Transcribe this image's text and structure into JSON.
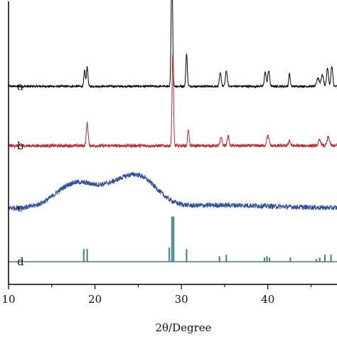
{
  "chart_data": {
    "type": "line",
    "xlabel": "2θ/Degree",
    "ylabel": "",
    "xlim": [
      10,
      48
    ],
    "ylim": [
      0,
      100
    ],
    "grid": false,
    "xticks": [
      10,
      20,
      30,
      40
    ],
    "x_tick_labels": [
      "10",
      "20",
      "30",
      "40"
    ],
    "series": [
      {
        "name": "a",
        "color": "#000000",
        "baseline": 70,
        "noise": 0.35,
        "hump": [],
        "peaks": [
          [
            18.8,
            5.5,
            0.12
          ],
          [
            19.1,
            7,
            0.12
          ],
          [
            28.9,
            43,
            0.12
          ],
          [
            30.6,
            11.5,
            0.12
          ],
          [
            34.5,
            4.5,
            0.15
          ],
          [
            35.2,
            5.5,
            0.15
          ],
          [
            39.7,
            5,
            0.15
          ],
          [
            40.1,
            5.5,
            0.15
          ],
          [
            42.5,
            4.5,
            0.12
          ],
          [
            45.8,
            3,
            0.2
          ],
          [
            46.3,
            4,
            0.2
          ],
          [
            46.9,
            6.5,
            0.15
          ],
          [
            47.4,
            7,
            0.15
          ]
        ]
      },
      {
        "name": "b",
        "color": "#c0262c",
        "baseline": 49,
        "noise": 0.55,
        "hump": [],
        "peaks": [
          [
            19.1,
            8,
            0.15
          ],
          [
            29.0,
            32,
            0.12
          ],
          [
            30.8,
            6,
            0.12
          ],
          [
            34.6,
            3,
            0.15
          ],
          [
            35.4,
            3.5,
            0.15
          ],
          [
            40.0,
            3.5,
            0.2
          ],
          [
            42.5,
            2,
            0.15
          ],
          [
            46.0,
            2,
            0.2
          ],
          [
            47.0,
            3,
            0.2
          ]
        ]
      },
      {
        "name": "c",
        "color": "#2f4f9e",
        "baseline": 27,
        "noise": 0.9,
        "hump": [
          [
            17.5,
            8,
            3.0
          ],
          [
            22.5,
            7,
            3.5
          ],
          [
            25.5,
            7.5,
            2.8
          ],
          [
            35,
            1,
            8
          ]
        ],
        "peaks": []
      },
      {
        "name": "d",
        "color": "#3e7f83",
        "baseline": 8,
        "noise": 0,
        "sticks": [
          [
            18.7,
            4.5
          ],
          [
            19.1,
            4.5
          ],
          [
            28.6,
            5
          ],
          [
            28.9,
            16
          ],
          [
            29.1,
            16
          ],
          [
            30.6,
            4.5
          ],
          [
            34.4,
            2
          ],
          [
            35.2,
            2.5
          ],
          [
            39.6,
            1.5
          ],
          [
            39.9,
            2
          ],
          [
            40.2,
            1.5
          ],
          [
            42.6,
            1.5
          ],
          [
            45.6,
            1
          ],
          [
            46.0,
            1.5
          ],
          [
            46.6,
            2.5
          ],
          [
            47.3,
            2.5
          ]
        ],
        "hump": [],
        "peaks": []
      }
    ]
  }
}
